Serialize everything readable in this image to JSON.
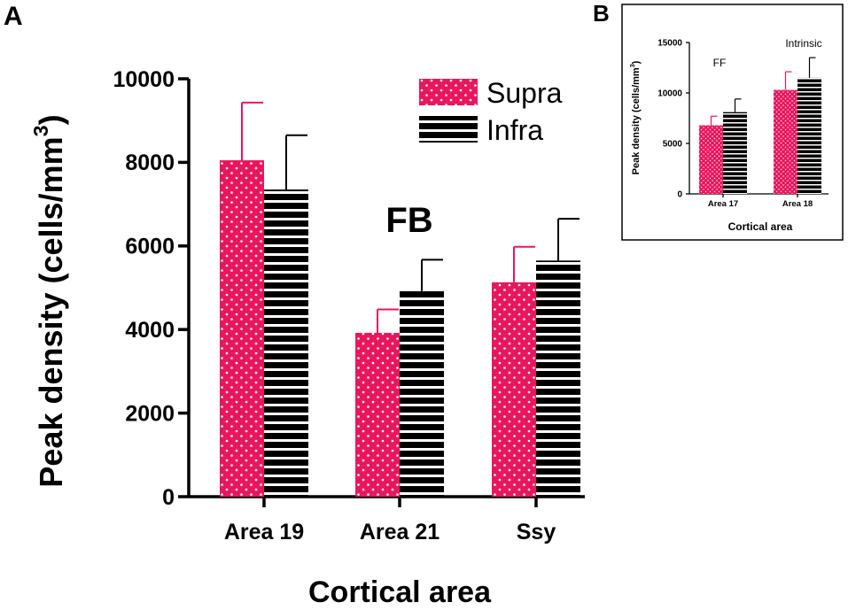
{
  "panel_a_label": "A",
  "panel_b_label": "B",
  "chart_data": [
    {
      "type": "bar",
      "panel": "A",
      "title": "",
      "annotation": "FB",
      "xlabel": "Cortical area",
      "ylabel": "Peak density (cells/mm",
      "ylabel_superscript": "3",
      "ylabel_suffix": ")",
      "ylim": [
        0,
        10000
      ],
      "yticks": [
        0,
        2000,
        4000,
        6000,
        8000,
        10000
      ],
      "categories": [
        "Area 19",
        "Area 21",
        "Ssy"
      ],
      "legend_position": "top-right",
      "series": [
        {
          "name": "Supra",
          "color": "#e8175d",
          "pattern": "dots",
          "values": [
            8050,
            3920,
            5130
          ],
          "errors": [
            1380,
            560,
            850
          ]
        },
        {
          "name": "Infra",
          "color": "#000000",
          "pattern": "horizontal-stripes",
          "values": [
            7350,
            4920,
            5650
          ],
          "errors": [
            1300,
            750,
            1000
          ]
        }
      ]
    },
    {
      "type": "bar",
      "panel": "B",
      "title": "",
      "xlabel": "Cortical area",
      "ylabel": "Peak density (cells/mm",
      "ylabel_superscript": "3",
      "ylabel_suffix": ")",
      "ylim": [
        0,
        15000
      ],
      "yticks": [
        0,
        5000,
        10000,
        15000
      ],
      "categories": [
        "Area 17",
        "Area 18"
      ],
      "annotations": [
        "FF",
        "Intrinsic"
      ],
      "series": [
        {
          "name": "Supra",
          "color": "#e8175d",
          "pattern": "dots",
          "values": [
            6800,
            10300
          ],
          "errors": [
            900,
            1800
          ]
        },
        {
          "name": "Infra",
          "color": "#000000",
          "pattern": "horizontal-stripes",
          "values": [
            8100,
            11500
          ],
          "errors": [
            1300,
            2000
          ]
        }
      ]
    }
  ]
}
